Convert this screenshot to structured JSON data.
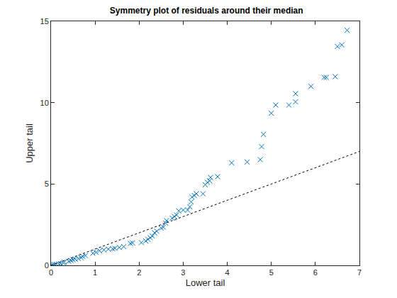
{
  "chart_data": {
    "type": "scatter",
    "title": "Symmetry plot of residuals around their median",
    "x_label": "Lower tail",
    "y_label": "Upper tail",
    "xlim": [
      0,
      7
    ],
    "ylim": [
      0,
      15
    ],
    "xticks": [
      0,
      1,
      2,
      3,
      4,
      5,
      6,
      7
    ],
    "yticks": [
      0,
      5,
      10,
      15
    ],
    "grid": false,
    "series": [
      {
        "type": "scatter",
        "color": "#0072bd",
        "marker": "x",
        "x": [
          0.02,
          0.05,
          0.08,
          0.12,
          0.18,
          0.22,
          0.28,
          0.3,
          0.4,
          0.45,
          0.5,
          0.55,
          0.62,
          0.68,
          0.72,
          0.78,
          0.95,
          1.02,
          1.1,
          1.2,
          1.3,
          1.4,
          1.45,
          1.55,
          1.65,
          1.8,
          1.85,
          2.05,
          2.15,
          2.2,
          2.25,
          2.3,
          2.35,
          2.4,
          2.5,
          2.55,
          2.6,
          2.62,
          2.75,
          2.8,
          2.85,
          2.9,
          3.0,
          3.1,
          3.15,
          3.18,
          3.2,
          3.25,
          3.3,
          3.45,
          3.5,
          3.55,
          3.6,
          3.62,
          3.78,
          4.1,
          4.45,
          4.75,
          4.78,
          4.82,
          5.0,
          5.1,
          5.4,
          5.55,
          5.55,
          5.9,
          6.2,
          6.25,
          6.45,
          6.5,
          6.6,
          6.72
        ],
        "values": [
          0.02,
          0.03,
          0.05,
          0.06,
          0.08,
          0.1,
          0.15,
          0.2,
          0.25,
          0.3,
          0.35,
          0.38,
          0.42,
          0.48,
          0.55,
          0.6,
          0.75,
          0.8,
          0.9,
          0.95,
          1.0,
          1.02,
          1.05,
          1.1,
          1.15,
          1.35,
          1.38,
          1.4,
          1.5,
          1.6,
          1.7,
          1.8,
          2.0,
          2.1,
          2.3,
          2.35,
          2.6,
          2.75,
          2.9,
          3.0,
          3.1,
          3.35,
          3.4,
          3.4,
          3.6,
          3.9,
          4.2,
          4.3,
          4.4,
          4.4,
          4.95,
          5.1,
          5.2,
          5.4,
          5.45,
          6.3,
          6.35,
          6.5,
          7.3,
          8.05,
          9.35,
          9.85,
          9.85,
          10.05,
          10.55,
          11.0,
          11.55,
          11.55,
          11.6,
          13.45,
          13.55,
          14.45
        ]
      },
      {
        "type": "line",
        "color": "#000000",
        "line_style": "dotted",
        "x": [
          0,
          7
        ],
        "values": [
          0,
          7
        ]
      }
    ]
  }
}
